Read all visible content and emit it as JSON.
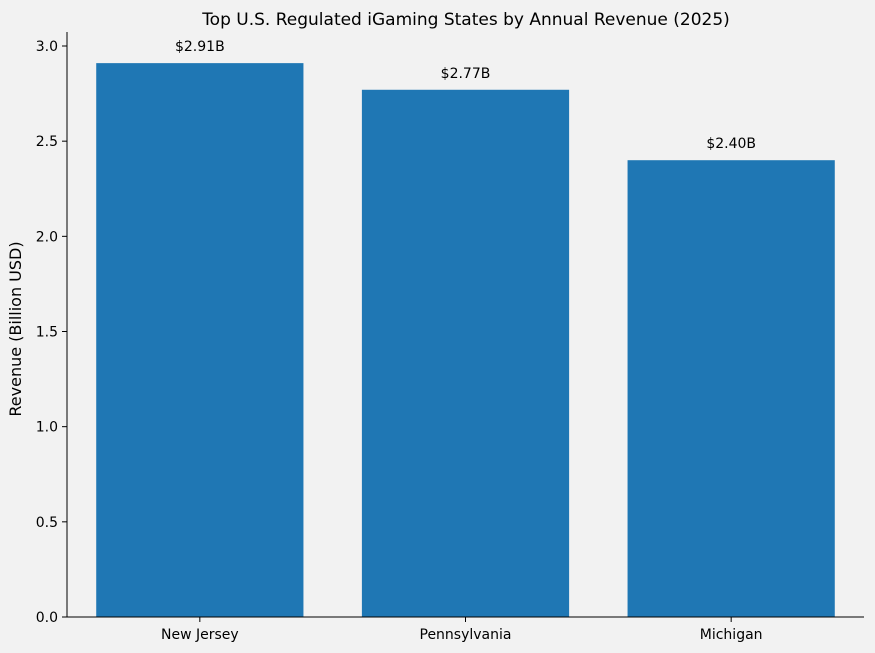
{
  "chart_data": {
    "type": "bar",
    "title": "Top U.S. Regulated iGaming States by Annual Revenue (2025)",
    "xlabel": "",
    "ylabel": "Revenue (Billion USD)",
    "categories": [
      "New Jersey",
      "Pennsylvania",
      "Michigan"
    ],
    "values": [
      2.91,
      2.77,
      2.4
    ],
    "data_labels": [
      "$2.91B",
      "$2.77B",
      "$2.40B"
    ],
    "ylim": [
      0,
      3.0
    ],
    "yticks": [
      0.0,
      0.5,
      1.0,
      1.5,
      2.0,
      2.5,
      3.0
    ],
    "ytick_labels": [
      "0.0",
      "0.5",
      "1.0",
      "1.5",
      "2.0",
      "2.5",
      "3.0"
    ],
    "grid": false,
    "legend": "none",
    "bar_color": "#1f77b4",
    "background_color": "#f2f2f2"
  }
}
